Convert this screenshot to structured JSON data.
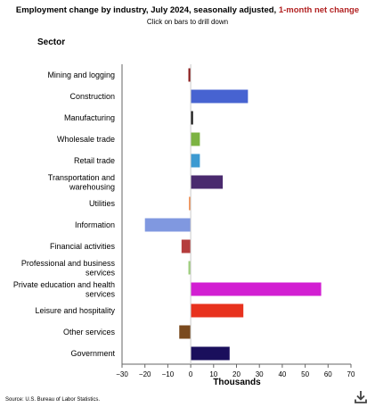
{
  "header": {
    "title_main": "Employment change by industry, July 2024, seasonally adjusted, ",
    "title_highlight": "1-month net change",
    "subtitle": "Click on bars to drill down",
    "sector_label": "Sector"
  },
  "footer": {
    "source": "Source: U.S. Bureau of Labor Statistics.",
    "download_icon": "download-icon"
  },
  "colors": {
    "highlight": "#b22222"
  },
  "chart_data": {
    "type": "bar",
    "orientation": "horizontal",
    "title": "Employment change by industry, July 2024, seasonally adjusted, 1-month net change",
    "xlabel": "Thousands",
    "ylabel": "Sector",
    "xlim": [
      -30,
      70
    ],
    "xticks": [
      -30,
      -20,
      -10,
      0,
      10,
      20,
      30,
      40,
      50,
      60,
      70
    ],
    "grid": false,
    "categories": [
      {
        "label": [
          "Mining and logging"
        ],
        "value": -1,
        "color": "#8b1a1a"
      },
      {
        "label": [
          "Construction"
        ],
        "value": 25,
        "color": "#4763d1"
      },
      {
        "label": [
          "Manufacturing"
        ],
        "value": 1,
        "color": "#111111"
      },
      {
        "label": [
          "Wholesale trade"
        ],
        "value": 4,
        "color": "#7cb342"
      },
      {
        "label": [
          "Retail trade"
        ],
        "value": 4,
        "color": "#3d9ad1"
      },
      {
        "label": [
          "Transportation and",
          "warehousing"
        ],
        "value": 14,
        "color": "#4a2a6e"
      },
      {
        "label": [
          "Utilities"
        ],
        "value": -0.5,
        "color": "#f08a4b"
      },
      {
        "label": [
          "Information"
        ],
        "value": -20,
        "color": "#8098e0"
      },
      {
        "label": [
          "Financial activities"
        ],
        "value": -4,
        "color": "#b53d3d"
      },
      {
        "label": [
          "Professional and business",
          "services"
        ],
        "value": -1,
        "color": "#9cce7a"
      },
      {
        "label": [
          "Private education and health",
          "services"
        ],
        "value": 57,
        "color": "#d21fd2"
      },
      {
        "label": [
          "Leisure and hospitality"
        ],
        "value": 23,
        "color": "#e8321e"
      },
      {
        "label": [
          "Other services"
        ],
        "value": -5,
        "color": "#7a4a1e"
      },
      {
        "label": [
          "Government"
        ],
        "value": 17,
        "color": "#1a0f5c"
      }
    ]
  }
}
